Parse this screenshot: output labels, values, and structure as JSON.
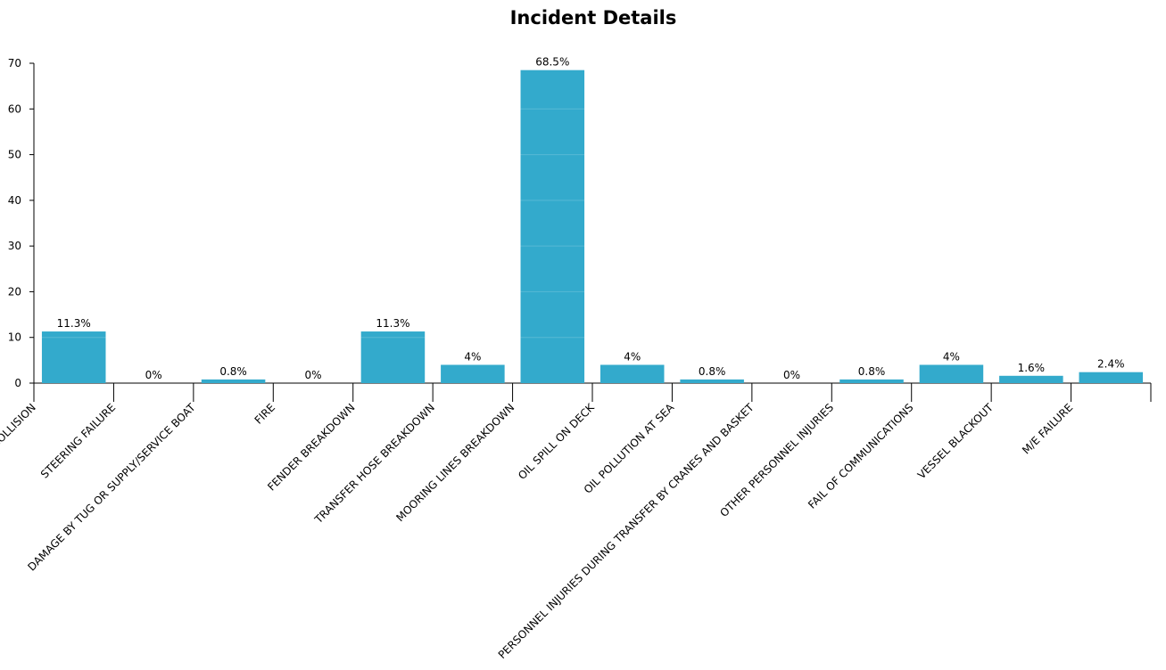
{
  "chart_data": {
    "type": "bar",
    "title": "Incident Details",
    "xlabel": "",
    "ylabel": "",
    "ylim": [
      0,
      70
    ],
    "yticks": [
      0,
      10,
      20,
      30,
      40,
      50,
      60,
      70
    ],
    "grid": false,
    "bar_color": "#33aacc",
    "categories": [
      "VESSEL COLLISION",
      "STEERING FAILURE",
      "DAMAGE BY TUG OR SUPPLY/SERVICE BOAT",
      "FIRE",
      "FENDER BREAKDOWN",
      "TRANSFER HOSE BREAKDOWN",
      "MOORING LINES BREAKDOWN",
      "OIL SPILL ON DECK",
      "OIL POLLUTION AT SEA",
      "PERSONNEL INJURIES DURING TRANSFER BY CRANES AND BASKET",
      "OTHER PERSONNEL INJURIES",
      "FAIL OF COMMUNICATIONS",
      "VESSEL BLACKOUT",
      "M/E FAILURE"
    ],
    "values": [
      11.3,
      0,
      0.8,
      0,
      11.3,
      4,
      68.5,
      4,
      0.8,
      0,
      0.8,
      4,
      1.6,
      2.4
    ],
    "value_labels": [
      "11.3%",
      "0%",
      "0.8%",
      "0%",
      "11.3%",
      "4%",
      "68.5%",
      "4%",
      "0.8%",
      "0%",
      "0.8%",
      "4%",
      "1.6%",
      "2.4%"
    ]
  }
}
